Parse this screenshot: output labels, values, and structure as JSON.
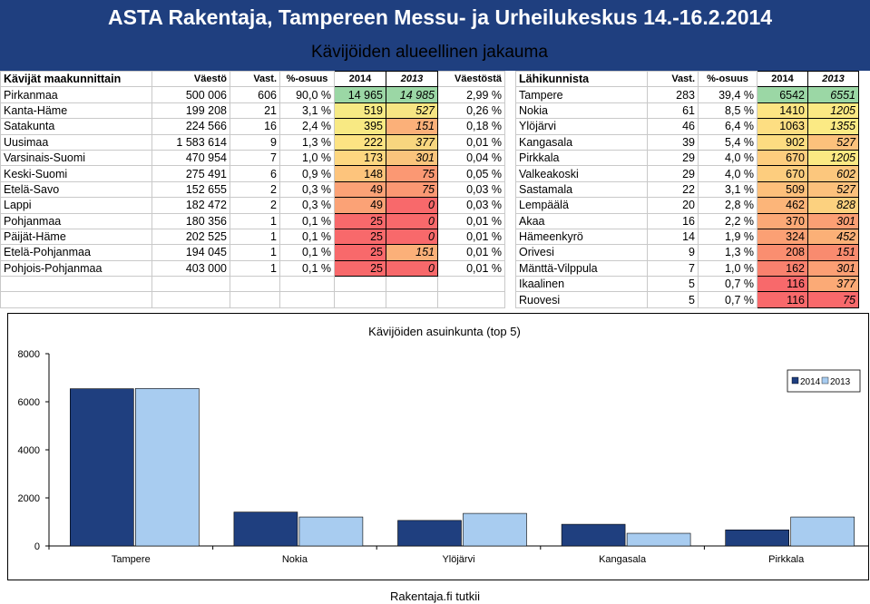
{
  "header": {
    "title": "ASTA Rakentaja, Tampereen Messu- ja Urheilukeskus 14.-16.2.2014",
    "subtitle": "Kävijöiden alueellinen jakauma"
  },
  "regional": {
    "headers": [
      "Kävijät maakunnittain",
      "Väestö",
      "Vast.",
      "%-osuus",
      "2014",
      "2013",
      "Väestöstä"
    ],
    "rows": [
      {
        "name": "Pirkanmaa",
        "population": "500 006",
        "count": "606",
        "share": "90,0 %",
        "y2014": "14 965",
        "y2013": "14 985",
        "popshare": "2,99 %",
        "c2014": "#9bd7a5",
        "c2013": "#9bd7a5"
      },
      {
        "name": "Kanta-Häme",
        "population": "199 208",
        "count": "21",
        "share": "3,1 %",
        "y2014": "519",
        "y2013": "527",
        "popshare": "0,26 %",
        "c2014": "#f6ea84",
        "c2013": "#f7e583"
      },
      {
        "name": "Satakunta",
        "population": "224 566",
        "count": "16",
        "share": "2,4 %",
        "y2014": "395",
        "y2013": "151",
        "popshare": "0,18 %",
        "c2014": "#f8e983",
        "c2013": "#fbb079"
      },
      {
        "name": "Uusimaa",
        "population": "1 583 614",
        "count": "9",
        "share": "1,3 %",
        "y2014": "222",
        "y2013": "377",
        "popshare": "0,01 %",
        "c2014": "#fde383",
        "c2013": "#f8d67f"
      },
      {
        "name": "Varsinais-Suomi",
        "population": "470 954",
        "count": "7",
        "share": "1,0 %",
        "y2014": "173",
        "y2013": "301",
        "popshare": "0,04 %",
        "c2014": "#fdd780",
        "c2013": "#fac47c"
      },
      {
        "name": "Keski-Suomi",
        "population": "275 491",
        "count": "6",
        "share": "0,9 %",
        "y2014": "148",
        "y2013": "75",
        "popshare": "0,05 %",
        "c2014": "#fdc47c",
        "c2013": "#fb9873"
      },
      {
        "name": "Etelä-Savo",
        "population": "152 655",
        "count": "2",
        "share": "0,3 %",
        "y2014": "49",
        "y2013": "75",
        "popshare": "0,03 %",
        "c2014": "#fba276",
        "c2013": "#fb9873"
      },
      {
        "name": "Lappi",
        "population": "182 472",
        "count": "2",
        "share": "0,3 %",
        "y2014": "49",
        "y2013": "0",
        "popshare": "0,03 %",
        "c2014": "#fba276",
        "c2013": "#f8696b"
      },
      {
        "name": "Pohjanmaa",
        "population": "180 356",
        "count": "1",
        "share": "0,1 %",
        "y2014": "25",
        "y2013": "0",
        "popshare": "0,01 %",
        "c2014": "#f8696b",
        "c2013": "#f8696b"
      },
      {
        "name": "Päijät-Häme",
        "population": "202 525",
        "count": "1",
        "share": "0,1 %",
        "y2014": "25",
        "y2013": "0",
        "popshare": "0,01 %",
        "c2014": "#f8696b",
        "c2013": "#f8696b"
      },
      {
        "name": "Etelä-Pohjanmaa",
        "population": "194 045",
        "count": "1",
        "share": "0,1 %",
        "y2014": "25",
        "y2013": "151",
        "popshare": "0,01 %",
        "c2014": "#f8696b",
        "c2013": "#fbb079"
      },
      {
        "name": "Pohjois-Pohjanmaa",
        "population": "403 000",
        "count": "1",
        "share": "0,1 %",
        "y2014": "25",
        "y2013": "0",
        "popshare": "0,01 %",
        "c2014": "#f8696b",
        "c2013": "#f8696b"
      }
    ]
  },
  "neighbor": {
    "headers": [
      "Lähikunnista",
      "Vast.",
      "%-osuus",
      "2014",
      "2013"
    ],
    "rows": [
      {
        "name": "Tampere",
        "count": "283",
        "share": "39,4 %",
        "y2014": "6542",
        "y2013": "6551",
        "c2014": "#9bd7a5",
        "c2013": "#9bd7a5"
      },
      {
        "name": "Nokia",
        "count": "61",
        "share": "8,5 %",
        "y2014": "1410",
        "y2013": "1205",
        "c2014": "#fde583",
        "c2013": "#fbe983"
      },
      {
        "name": "Ylöjärvi",
        "count": "46",
        "share": "6,4 %",
        "y2014": "1063",
        "y2013": "1355",
        "c2014": "#fdde82",
        "c2013": "#fbea84"
      },
      {
        "name": "Kangasala",
        "count": "39",
        "share": "5,4 %",
        "y2014": "902",
        "y2013": "527",
        "c2014": "#fddc81",
        "c2013": "#fcc17c"
      },
      {
        "name": "Pirkkala",
        "count": "29",
        "share": "4,0 %",
        "y2014": "670",
        "y2013": "1205",
        "c2014": "#fdcd7e",
        "c2013": "#fbe983"
      },
      {
        "name": "Valkeakoski",
        "count": "29",
        "share": "4,0 %",
        "y2014": "670",
        "y2013": "602",
        "c2014": "#fdcd7e",
        "c2013": "#fcc77d"
      },
      {
        "name": "Sastamala",
        "count": "22",
        "share": "3,1 %",
        "y2014": "509",
        "y2013": "527",
        "c2014": "#fdc07b",
        "c2013": "#fcc17c"
      },
      {
        "name": "Lempäälä",
        "count": "20",
        "share": "2,8 %",
        "y2014": "462",
        "y2013": "828",
        "c2014": "#fcb579",
        "c2013": "#fcd17f"
      },
      {
        "name": "Akaa",
        "count": "16",
        "share": "2,2 %",
        "y2014": "370",
        "y2013": "301",
        "c2014": "#fca976",
        "c2013": "#fb9f74"
      },
      {
        "name": "Hämeenkyrö",
        "count": "14",
        "share": "1,9 %",
        "y2014": "324",
        "y2013": "452",
        "c2014": "#fba074",
        "c2013": "#fbb077"
      },
      {
        "name": "Orivesi",
        "count": "9",
        "share": "1,3 %",
        "y2014": "208",
        "y2013": "151",
        "c2014": "#fa8e70",
        "c2013": "#f98b6f"
      },
      {
        "name": "Mänttä-Vilppula",
        "count": "7",
        "share": "1,0 %",
        "y2014": "162",
        "y2013": "301",
        "c2014": "#f9816e",
        "c2013": "#fb9f74"
      },
      {
        "name": "Ikaalinen",
        "count": "5",
        "share": "0,7 %",
        "y2014": "116",
        "y2013": "377",
        "c2014": "#f8696b",
        "c2013": "#fbaa76"
      },
      {
        "name": "Ruovesi",
        "count": "5",
        "share": "0,7 %",
        "y2014": "116",
        "y2013": "75",
        "c2014": "#f8696b",
        "c2013": "#f8696b"
      }
    ]
  },
  "chart_data": {
    "type": "bar",
    "title": "Kävijöiden asuinkunta (top 5)",
    "categories": [
      "Tampere",
      "Nokia",
      "Ylöjärvi",
      "Kangasala",
      "Pirkkala"
    ],
    "series": [
      {
        "name": "2014",
        "values": [
          6542,
          1410,
          1063,
          902,
          670
        ],
        "color": "#1f3f7f"
      },
      {
        "name": "2013",
        "values": [
          6551,
          1205,
          1355,
          527,
          1205
        ],
        "color": "#a8ccf0"
      }
    ],
    "ylim": [
      0,
      8000
    ],
    "yticks": [
      0,
      2000,
      4000,
      6000,
      8000
    ],
    "legend": "top-right",
    "xlabel": "",
    "ylabel": ""
  },
  "footer": "Rakentaja.fi tutkii"
}
